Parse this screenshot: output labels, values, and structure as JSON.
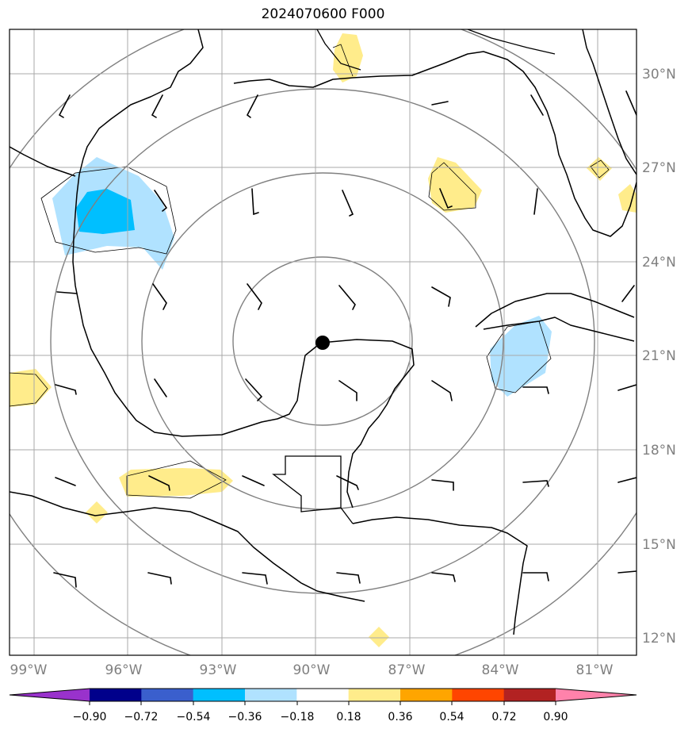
{
  "title": "2024070600 F000",
  "longitude_labels": [
    "99°W",
    "96°W",
    "93°W",
    "90°W",
    "87°W",
    "84°W",
    "81°W"
  ],
  "latitude_labels": [
    "30°N",
    "27°N",
    "24°N",
    "21°N",
    "18°N",
    "15°N",
    "12°N"
  ],
  "colorbar": {
    "tick_labels": [
      "−0.90",
      "−0.72",
      "−0.54",
      "−0.36",
      "−0.18",
      "0.18",
      "0.36",
      "0.54",
      "0.72",
      "0.90"
    ],
    "colors": [
      "#9932cc",
      "#00008b",
      "#3a5fcd",
      "#00bfff",
      "#b0e2ff",
      "#ffffff",
      "#ffec8b",
      "#ffa500",
      "#ff4500",
      "#b22222",
      "#ff82ab"
    ]
  },
  "storm_center": {
    "lon": -89.8,
    "lat": 21.4
  },
  "colors": {
    "coast": "#000000",
    "grid": "#a9a9a9",
    "range_rings": "#808080",
    "positive": "#ffec8b",
    "negative_light": "#b0e2ff",
    "negative_mid": "#00bfff"
  }
}
